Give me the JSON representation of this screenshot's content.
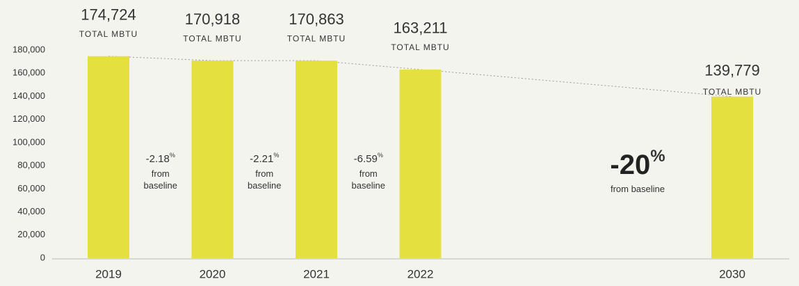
{
  "chart_data": {
    "type": "bar",
    "categories": [
      "2019",
      "2020",
      "2021",
      "2022",
      null,
      null,
      "2030"
    ],
    "values": [
      174724,
      170918,
      170863,
      163211,
      null,
      null,
      139779
    ],
    "value_labels": [
      "174,724",
      "170,918",
      "170,863",
      "163,211",
      null,
      null,
      "139,779"
    ],
    "value_unit": "TOTAL MBTU",
    "color": "#e4e040",
    "ylim": [
      0,
      180000
    ],
    "yticks": [
      0,
      {
        "value": 20000,
        "label": "20,000"
      },
      {
        "value": 40000,
        "label": "40,000"
      },
      {
        "value": 60000,
        "label": "60,000"
      },
      {
        "value": 80000,
        "label": "80,000"
      },
      {
        "value": 100000,
        "label": "100,000"
      },
      {
        "value": 120000,
        "label": "120,000"
      },
      {
        "value": 140000,
        "label": "140,000"
      },
      {
        "value": 160000,
        "label": "160,000"
      },
      {
        "value": 180000,
        "label": "180,000"
      }
    ],
    "trend_line": true,
    "annotations": [
      {
        "label": "-2.18",
        "suffix": "%",
        "note": "from baseline"
      },
      {
        "label": "-2.21",
        "suffix": "%",
        "note": "from baseline"
      },
      {
        "label": "-6.59",
        "suffix": "%",
        "note": "from baseline"
      },
      {
        "label": "-20",
        "suffix": "%",
        "note": "from baseline"
      }
    ]
  }
}
